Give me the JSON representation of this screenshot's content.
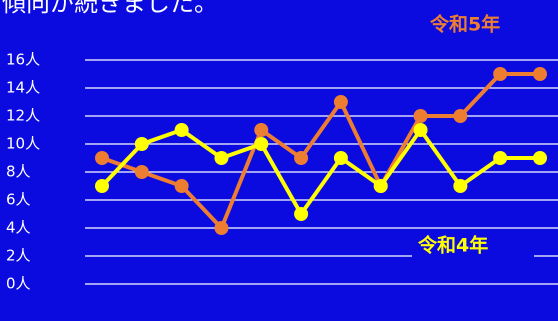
{
  "chart_data": {
    "type": "line",
    "title": "傾向が続きました。",
    "categories": [
      null,
      null,
      null,
      null,
      null,
      null,
      null,
      null,
      null,
      null,
      null,
      null
    ],
    "series": [
      {
        "name": "令和5年",
        "color": "#ed7d31",
        "values": [
          9,
          8,
          7,
          4,
          11,
          9,
          13,
          7,
          12,
          12,
          15,
          15
        ]
      },
      {
        "name": "令和4年",
        "color": "#ffff00",
        "values": [
          7,
          10,
          11,
          9,
          10,
          5,
          9,
          7,
          11,
          7,
          9,
          9
        ]
      }
    ],
    "ylim": [
      0,
      16
    ],
    "yticks": [
      {
        "value": 0,
        "label": "0人"
      },
      {
        "value": 2,
        "label": "2人"
      },
      {
        "value": 4,
        "label": "4人"
      },
      {
        "value": 6,
        "label": "6人"
      },
      {
        "value": 8,
        "label": "8人"
      },
      {
        "value": 10,
        "label": "10人"
      },
      {
        "value": 12,
        "label": "12人"
      },
      {
        "value": 14,
        "label": "14人"
      },
      {
        "value": 16,
        "label": "16人"
      }
    ],
    "grid": true
  }
}
